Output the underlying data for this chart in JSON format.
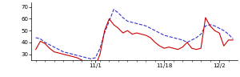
{
  "blue_x": [
    0,
    1,
    2,
    3,
    4,
    5,
    6,
    7,
    8,
    9,
    10,
    11,
    12,
    13,
    14,
    15,
    16,
    17,
    18,
    19,
    20,
    21,
    22,
    23,
    24,
    25,
    26,
    27,
    28,
    29,
    30,
    31,
    32,
    33,
    34,
    35,
    36,
    37,
    38,
    39,
    40,
    41,
    42,
    43
  ],
  "blue_y": [
    44,
    43,
    40,
    38,
    36,
    34,
    32,
    31,
    30,
    29,
    28,
    27,
    26,
    27,
    35,
    48,
    58,
    68,
    65,
    61,
    58,
    57,
    56,
    55,
    54,
    52,
    50,
    48,
    46,
    45,
    44,
    43,
    42,
    40,
    42,
    44,
    47,
    54,
    55,
    54,
    52,
    50,
    47,
    43
  ],
  "red_x": [
    0,
    1,
    2,
    3,
    4,
    5,
    6,
    7,
    8,
    9,
    10,
    11,
    12,
    13,
    14,
    15,
    16,
    17,
    18,
    19,
    20,
    21,
    22,
    23,
    24,
    25,
    26,
    27,
    28,
    29,
    30,
    31,
    32,
    33,
    34,
    35,
    36,
    37,
    38,
    39,
    40,
    41,
    42,
    43
  ],
  "red_y": [
    34,
    41,
    39,
    35,
    32,
    31,
    30,
    29,
    28,
    27,
    25,
    23,
    21,
    20,
    30,
    50,
    60,
    55,
    52,
    48,
    50,
    47,
    48,
    47,
    46,
    44,
    40,
    37,
    35,
    36,
    35,
    34,
    36,
    40,
    35,
    34,
    35,
    61,
    54,
    50,
    48,
    37,
    42,
    42
  ],
  "xtick_positions": [
    13,
    28,
    40
  ],
  "xtick_labels": [
    "11/1",
    "11/18",
    "12/2"
  ],
  "ytick_positions": [
    30,
    40,
    50,
    60,
    70
  ],
  "ytick_labels": [
    "30",
    "40",
    "50",
    "60",
    "70"
  ],
  "ylim": [
    25,
    74
  ],
  "xlim": [
    -1,
    44
  ],
  "blue_color": "#3333cc",
  "red_color": "#cc0000",
  "bg_color": "#ffffff",
  "linewidth": 0.8
}
